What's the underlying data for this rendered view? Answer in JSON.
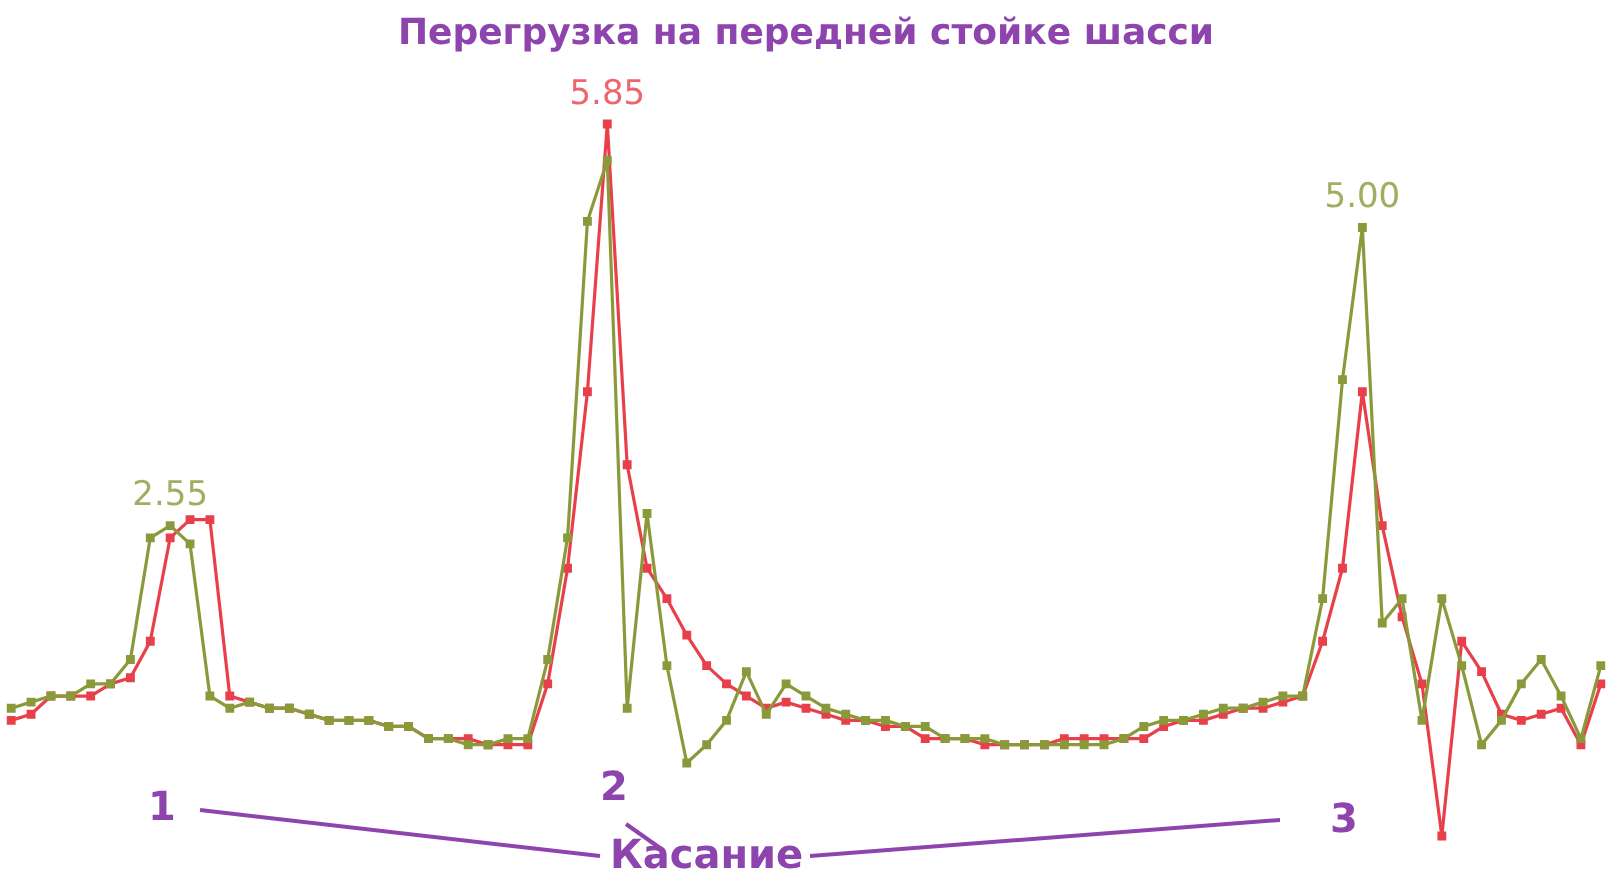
{
  "chart_data": {
    "type": "line",
    "title": "Перегрузка на передней стойке шасси",
    "tick_labels": false,
    "marker": "square",
    "categories": [
      null,
      null,
      null,
      null,
      null,
      null,
      null,
      null,
      null,
      null,
      null,
      null,
      null,
      null,
      null,
      null,
      null,
      null,
      null,
      null,
      null,
      null,
      null,
      null,
      null,
      null,
      null,
      null,
      null,
      null,
      null,
      null,
      null,
      null,
      null,
      null,
      null,
      null,
      null,
      null,
      null,
      null,
      null,
      null,
      null,
      null,
      null,
      null,
      null,
      null,
      null,
      null,
      null,
      null,
      null,
      null,
      null,
      null,
      null,
      null,
      null,
      null,
      null,
      null,
      null,
      null,
      null,
      null,
      null,
      null,
      null,
      null,
      null,
      null,
      null,
      null,
      null,
      null,
      null,
      null,
      null
    ],
    "series": [
      {
        "color": "#8a9a3a",
        "values": [
          1.05,
          1.1,
          1.15,
          1.15,
          1.25,
          1.25,
          1.45,
          2.45,
          2.55,
          2.4,
          1.15,
          1.05,
          1.1,
          1.05,
          1.05,
          1.0,
          0.95,
          0.95,
          0.95,
          0.9,
          0.9,
          0.8,
          0.8,
          0.75,
          0.75,
          0.8,
          0.8,
          1.45,
          2.45,
          5.05,
          5.55,
          1.05,
          2.65,
          1.4,
          0.6,
          0.75,
          0.95,
          1.35,
          1.0,
          1.25,
          1.15,
          1.05,
          1.0,
          0.95,
          0.95,
          0.9,
          0.9,
          0.8,
          0.8,
          0.8,
          0.75,
          0.75,
          0.75,
          0.75,
          0.75,
          0.75,
          0.8,
          0.9,
          0.95,
          0.95,
          1.0,
          1.05,
          1.05,
          1.1,
          1.15,
          1.15,
          1.95,
          3.75,
          5.0,
          1.75,
          1.95,
          0.95,
          1.95,
          1.4,
          0.75,
          0.95,
          1.25,
          1.45,
          1.15,
          0.8,
          1.4
        ],
        "value_labels": [
          null,
          null,
          null,
          null,
          null,
          null,
          null,
          null,
          "2.55",
          null,
          null,
          null,
          null,
          null,
          null,
          null,
          null,
          null,
          null,
          null,
          null,
          null,
          null,
          null,
          null,
          null,
          null,
          null,
          null,
          null,
          null,
          null,
          null,
          null,
          null,
          null,
          null,
          null,
          null,
          null,
          null,
          null,
          null,
          null,
          null,
          null,
          null,
          null,
          null,
          null,
          null,
          null,
          null,
          null,
          null,
          null,
          null,
          null,
          null,
          null,
          null,
          null,
          null,
          null,
          null,
          null,
          null,
          null,
          "5.00",
          null,
          null,
          null,
          null,
          null,
          null,
          null,
          null,
          null,
          null,
          null,
          null
        ]
      },
      {
        "color": "#e8404a",
        "values": [
          0.95,
          1.0,
          1.15,
          1.15,
          1.15,
          1.25,
          1.3,
          1.6,
          2.45,
          2.6,
          2.6,
          1.15,
          1.1,
          1.05,
          1.05,
          1.0,
          0.95,
          0.95,
          0.95,
          0.9,
          0.9,
          0.8,
          0.8,
          0.8,
          0.75,
          0.75,
          0.75,
          1.25,
          2.2,
          3.65,
          5.85,
          3.05,
          2.2,
          1.95,
          1.65,
          1.4,
          1.25,
          1.15,
          1.05,
          1.1,
          1.05,
          1.0,
          0.95,
          0.95,
          0.9,
          0.9,
          0.8,
          0.8,
          0.8,
          0.75,
          0.75,
          0.75,
          0.75,
          0.8,
          0.8,
          0.8,
          0.8,
          0.8,
          0.9,
          0.95,
          0.95,
          1.0,
          1.05,
          1.05,
          1.1,
          1.15,
          1.6,
          2.2,
          3.65,
          2.55,
          1.8,
          1.25,
          0,
          1.6,
          1.35,
          1.0,
          0.95,
          1.0,
          1.05,
          0.75,
          1.25
        ],
        "value_labels": [
          null,
          null,
          null,
          null,
          null,
          null,
          null,
          null,
          null,
          null,
          null,
          null,
          null,
          null,
          null,
          null,
          null,
          null,
          null,
          null,
          null,
          null,
          null,
          null,
          null,
          null,
          null,
          null,
          null,
          null,
          "5.85",
          null,
          null,
          null,
          null,
          null,
          null,
          null,
          null,
          null,
          null,
          null,
          null,
          null,
          null,
          null,
          null,
          null,
          null,
          null,
          null,
          null,
          null,
          null,
          null,
          null,
          null,
          null,
          null,
          null,
          null,
          null,
          null,
          null,
          null,
          null,
          null,
          null,
          null,
          null,
          null,
          null,
          null,
          null,
          null,
          null,
          null,
          null,
          null,
          null,
          null
        ]
      }
    ],
    "annotations": [
      "1",
      "2",
      "3",
      "Касание"
    ]
  }
}
